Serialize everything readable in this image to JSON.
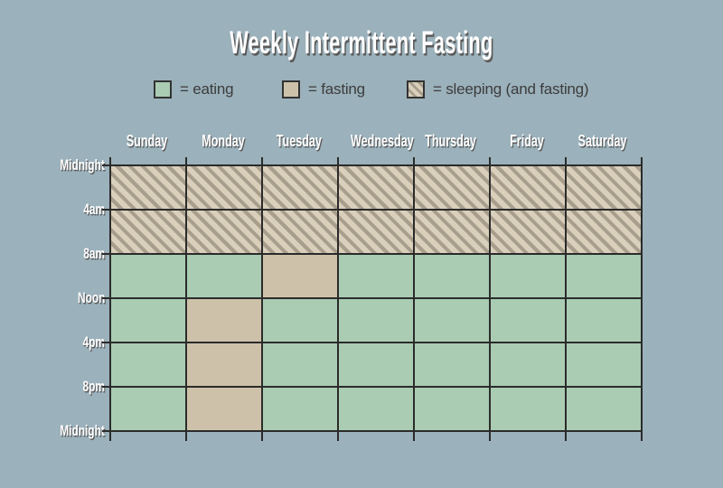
{
  "title": "Weekly Intermittent Fasting",
  "legend": {
    "items": [
      {
        "key": "eating",
        "label": "= eating"
      },
      {
        "key": "fasting",
        "label": "= fasting"
      },
      {
        "key": "sleeping",
        "label": "= sleeping (and fasting)"
      }
    ]
  },
  "colors": {
    "background": "#9bb1bb",
    "eating": "#a9ccb3",
    "fasting": "#cdc2a9",
    "hatch_light": "#d9cfba",
    "hatch_dark": "#a79e8d",
    "grid_line": "#2b2b2b",
    "label_text": "#ffffff",
    "legend_text": "#3c3c3c",
    "label_shadow": "#5a5a5a"
  },
  "chart_data": {
    "type": "heatmap",
    "title": "Weekly Intermittent Fasting",
    "columns": [
      "Sunday",
      "Monday",
      "Tuesday",
      "Wednesday",
      "Thursday",
      "Friday",
      "Saturday"
    ],
    "row_labels": [
      "Midnight",
      "4am",
      "8am",
      "Noon",
      "4pm",
      "8pm",
      "Midnight"
    ],
    "row_span_hours": 4,
    "legend_position": "top",
    "grid": "on",
    "states": [
      "eating",
      "fasting",
      "sleeping"
    ],
    "cells": [
      [
        "sleeping",
        "sleeping",
        "sleeping",
        "sleeping",
        "sleeping",
        "sleeping",
        "sleeping"
      ],
      [
        "sleeping",
        "sleeping",
        "sleeping",
        "sleeping",
        "sleeping",
        "sleeping",
        "sleeping"
      ],
      [
        "eating",
        "eating",
        "fasting",
        "eating",
        "eating",
        "eating",
        "eating"
      ],
      [
        "eating",
        "fasting",
        "eating",
        "eating",
        "eating",
        "eating",
        "eating"
      ],
      [
        "eating",
        "fasting",
        "eating",
        "eating",
        "eating",
        "eating",
        "eating"
      ],
      [
        "eating",
        "fasting",
        "eating",
        "eating",
        "eating",
        "eating",
        "eating"
      ]
    ]
  }
}
